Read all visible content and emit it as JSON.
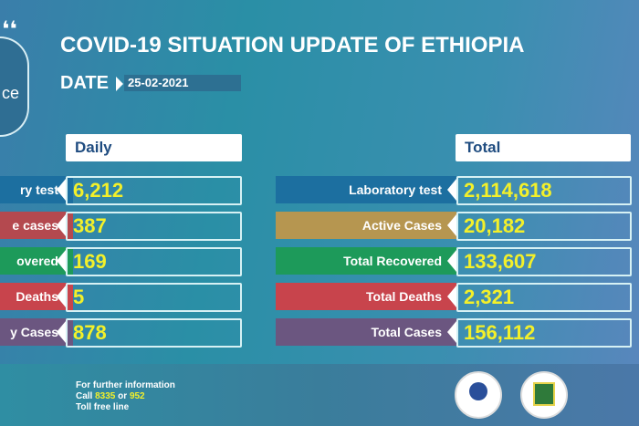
{
  "title": "COVID-19 SITUATION UPDATE OF ETHIOPIA",
  "date_label": "DATE",
  "date": "25-02-2021",
  "logo_partial_text": "ce",
  "daily": {
    "heading": "Daily",
    "rows": [
      {
        "label": "ry test",
        "value": "6,212",
        "color": "#1c6fa0"
      },
      {
        "label": "e cases",
        "value": "387",
        "color": "#b4494f"
      },
      {
        "label": "overed",
        "value": "169",
        "color": "#1d9a5a"
      },
      {
        "label": "Deaths",
        "value": "5",
        "color": "#c8444c"
      },
      {
        "label": "y Cases",
        "value": "878",
        "color": "#6b5680"
      }
    ]
  },
  "total": {
    "heading": "Total",
    "rows": [
      {
        "label": "Laboratory test",
        "value": "2,114,618",
        "color": "#1c6fa0"
      },
      {
        "label": "Active Cases",
        "value": "20,182",
        "color": "#b69650"
      },
      {
        "label": "Total Recovered",
        "value": "133,607",
        "color": "#1d9a5a"
      },
      {
        "label": "Total Deaths",
        "value": "2,321",
        "color": "#c8444c"
      },
      {
        "label": "Total Cases",
        "value": "156,112",
        "color": "#6b5680"
      }
    ]
  },
  "footer": {
    "line1": "For further information",
    "call": "Call",
    "num1": "8335",
    "or": "or",
    "num2": "952",
    "line3": "Toll free line"
  }
}
